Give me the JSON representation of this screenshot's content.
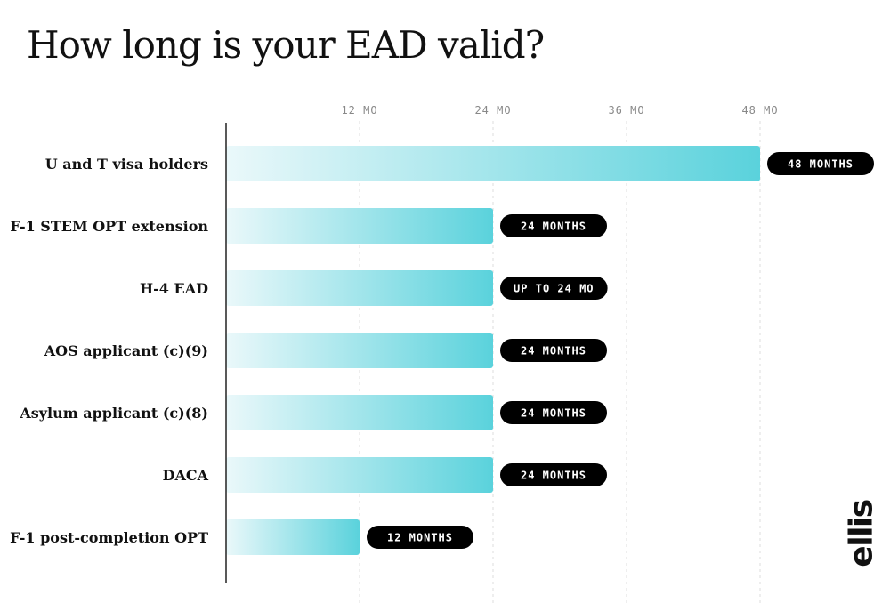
{
  "title": "How long is your EAD valid?",
  "logo": "ellis",
  "colors": {
    "bar_start": "#eaf8fa",
    "bar_end": "#5ad2dc",
    "pill": "#000000",
    "pill_text": "#ffffff",
    "grid": "#e2e2e2",
    "axis": "#222222",
    "tick_text": "#888888",
    "label_text": "#111111"
  },
  "chart_data": {
    "type": "bar",
    "orientation": "horizontal",
    "title": "How long is your EAD valid?",
    "xlabel": "",
    "ylabel": "",
    "xlim": [
      0,
      48
    ],
    "x_ticks": [
      12,
      24,
      36,
      48
    ],
    "x_tick_labels": [
      "12 MO",
      "24 MO",
      "36 MO",
      "48 MO"
    ],
    "grid": true,
    "categories": [
      "U and T visa holders",
      "F-1 STEM OPT extension",
      "H-4 EAD",
      "AOS applicant (c)(9)",
      "Asylum applicant (c)(8)",
      "DACA",
      "F-1 post-completion OPT"
    ],
    "values": [
      48,
      24,
      24,
      24,
      24,
      24,
      12
    ],
    "value_labels": [
      "48 MONTHS",
      "24 MONTHS",
      "UP TO 24 MO",
      "24 MONTHS",
      "24 MONTHS",
      "24 MONTHS",
      "12 MONTHS"
    ]
  }
}
